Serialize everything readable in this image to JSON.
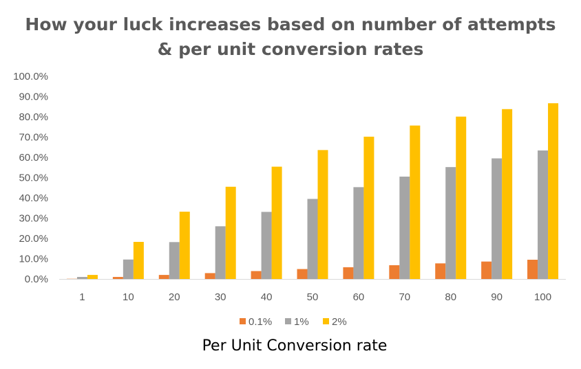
{
  "chart_data": {
    "type": "bar",
    "title_lines": [
      "How your luck increases based on number of attempts",
      "& per unit conversion rates"
    ],
    "xlabel": "Per Unit Conversion rate",
    "ylabel": "",
    "ylim": [
      0,
      100
    ],
    "y_ticks": [
      "0.0%",
      "10.0%",
      "20.0%",
      "30.0%",
      "40.0%",
      "50.0%",
      "60.0%",
      "70.0%",
      "80.0%",
      "90.0%",
      "100.0%"
    ],
    "categories": [
      "1",
      "10",
      "20",
      "30",
      "40",
      "50",
      "60",
      "70",
      "80",
      "90",
      "100"
    ],
    "grid": false,
    "legend_position": "bottom",
    "series": [
      {
        "name": "0.1%",
        "color": "#ED7D31",
        "values": [
          0.1,
          1.0,
          2.0,
          2.9,
          3.9,
          4.9,
          5.8,
          6.8,
          7.7,
          8.6,
          9.5
        ]
      },
      {
        "name": "1%",
        "color": "#A5A5A5",
        "values": [
          1.0,
          9.6,
          18.2,
          26.0,
          33.1,
          39.5,
          45.3,
          50.5,
          55.2,
          59.5,
          63.4
        ]
      },
      {
        "name": "2%",
        "color": "#FFC000",
        "values": [
          2.0,
          18.3,
          33.2,
          45.5,
          55.4,
          63.6,
          70.2,
          75.7,
          80.1,
          83.8,
          86.7
        ]
      }
    ]
  }
}
